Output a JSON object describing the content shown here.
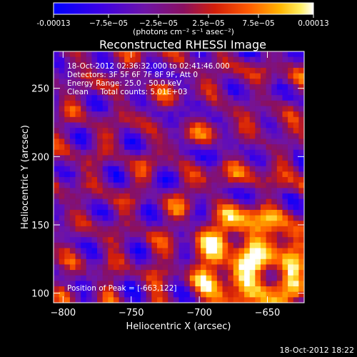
{
  "chart_data": {
    "type": "heatmap",
    "title": "Reconstructed RHESSI Image",
    "xlabel": "Heliocentric X (arcsec)",
    "ylabel": "Heliocentric Y (arcsec)",
    "xlim": [
      -807,
      -623
    ],
    "ylim": [
      93,
      277
    ],
    "x_ticks": [
      -800,
      -750,
      -700,
      -650
    ],
    "y_ticks": [
      100,
      150,
      200,
      250
    ],
    "colorbar": {
      "range": [
        -0.00013,
        0.00013
      ],
      "tick_labels": [
        "-0.00013",
        "−7.5e−05",
        "−2.5e−05",
        "2.5e−05",
        "7.5e−05",
        "0.00013"
      ],
      "tick_values": [
        -0.00013,
        -7.5e-05,
        -2.5e-05,
        2.5e-05,
        7.5e-05,
        0.00013
      ],
      "unit_label": "(photons cm⁻² s⁻¹ asec⁻²)"
    },
    "annotations": [
      "18-Oct-2012 02:36:32.000 to 02:41:46.000",
      "Detectors: 3F 5F 6F 7F 8F 9F, Att 0",
      "Energy Range: 25.0 - 50.0 keV",
      "Clean     Total counts: 5.01E+03"
    ],
    "peak_label": "Position of Peak = [-663,122]",
    "peak_position": [
      -663,
      122
    ],
    "grid_resolution": 46,
    "grid": false
  },
  "footer": {
    "timestamp": "18-Oct-2012 18:22"
  },
  "colors": {
    "background": "#000000",
    "foreground": "#ffffff"
  }
}
